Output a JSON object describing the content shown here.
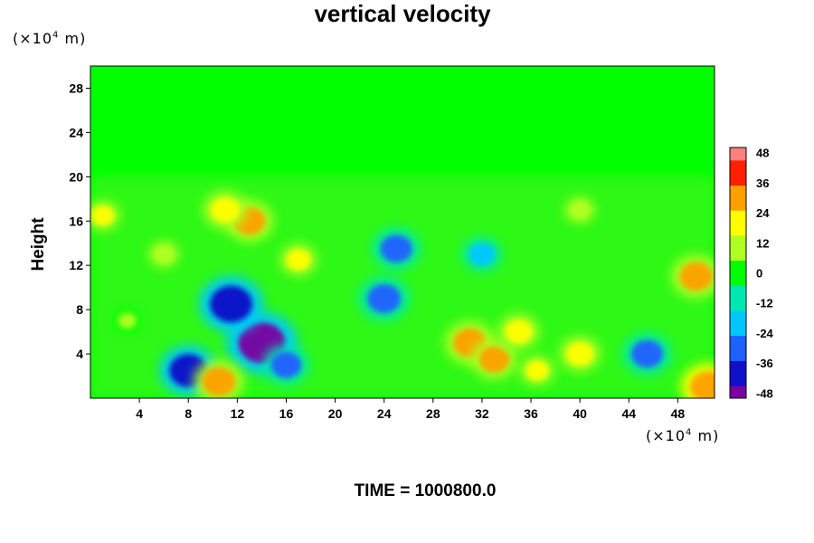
{
  "chart_data": {
    "type": "heatmap",
    "title": "vertical velocity",
    "ylabel": "Height",
    "x_unit": "(×10⁴ m)",
    "y_unit": "(×10⁴ m)",
    "footer": "TIME = 1000800.0",
    "x_ticks": [
      4,
      8,
      12,
      16,
      20,
      24,
      28,
      32,
      36,
      40,
      44,
      48
    ],
    "y_ticks": [
      4,
      8,
      12,
      16,
      20,
      24,
      28
    ],
    "xlim": [
      0,
      51
    ],
    "ylim": [
      0,
      30
    ],
    "colorbar": {
      "ticks": [
        48,
        36,
        24,
        12,
        0,
        -12,
        -24,
        -36,
        -48
      ],
      "range": [
        -50,
        50
      ],
      "colormap": [
        "#7a00a0",
        "#1010c8",
        "#2060ff",
        "#00c8ff",
        "#00e8b0",
        "#00ff00",
        "#b0ff20",
        "#ffff00",
        "#ffa000",
        "#ff2000",
        "#ff8080"
      ]
    },
    "features": [
      {
        "x": 31,
        "y": 5,
        "value": 30
      },
      {
        "x": 33,
        "y": 3.5,
        "value": 26
      },
      {
        "x": 35,
        "y": 6,
        "value": 22
      },
      {
        "x": 40,
        "y": 4,
        "value": 22
      },
      {
        "x": 36.5,
        "y": 2.5,
        "value": 16
      },
      {
        "x": 14,
        "y": 5,
        "value": -48
      },
      {
        "x": 11.5,
        "y": 8.5,
        "value": -42
      },
      {
        "x": 8,
        "y": 2.5,
        "value": -36
      },
      {
        "x": 16,
        "y": 3,
        "value": -26
      },
      {
        "x": 24,
        "y": 9,
        "value": -30
      },
      {
        "x": 25,
        "y": 13.5,
        "value": -28
      },
      {
        "x": 45.5,
        "y": 4,
        "value": -28
      },
      {
        "x": 13,
        "y": 16,
        "value": 28
      },
      {
        "x": 11,
        "y": 17,
        "value": 24
      },
      {
        "x": 49.5,
        "y": 11,
        "value": 30
      },
      {
        "x": 50.5,
        "y": 1,
        "value": 34
      },
      {
        "x": 10.5,
        "y": 1.5,
        "value": 30
      },
      {
        "x": 17,
        "y": 12.5,
        "value": 18
      },
      {
        "x": 3,
        "y": 7,
        "value": 10
      },
      {
        "x": 32,
        "y": 13,
        "value": -20
      },
      {
        "x": 40,
        "y": 17,
        "value": 12
      },
      {
        "x": 6,
        "y": 13,
        "value": 12
      },
      {
        "x": 1,
        "y": 16.5,
        "value": 16
      }
    ]
  }
}
